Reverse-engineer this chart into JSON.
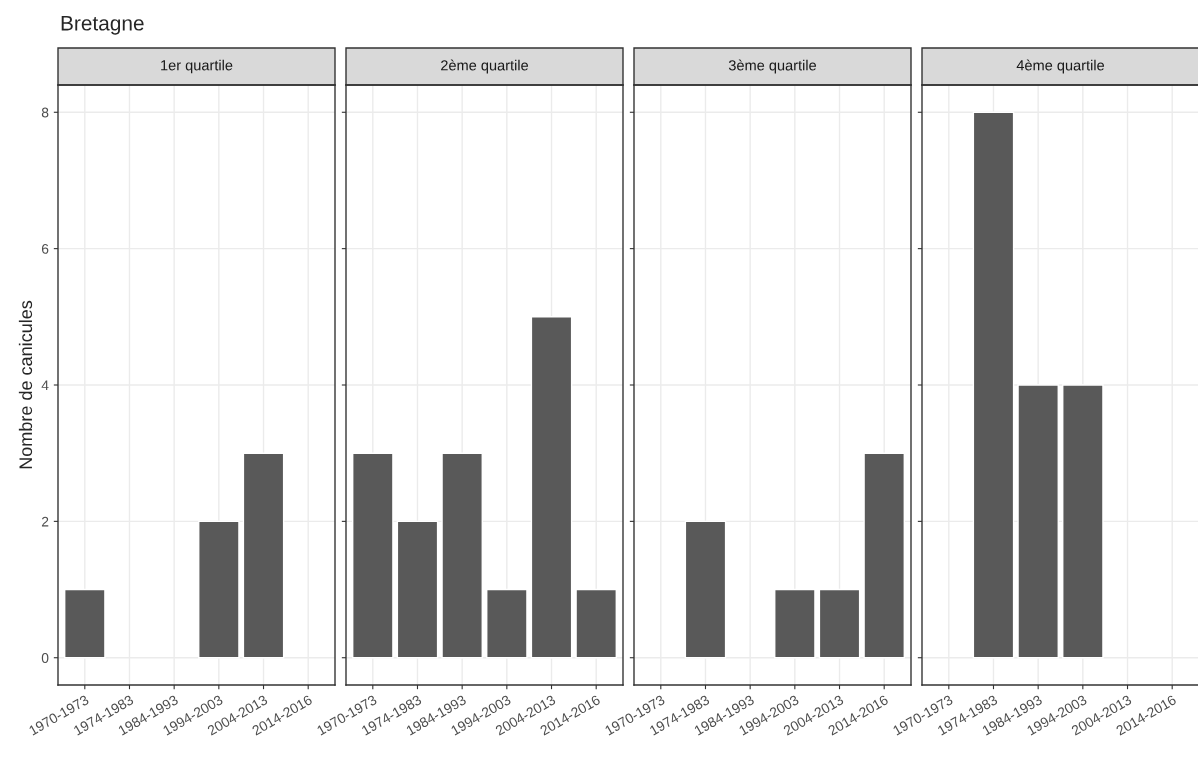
{
  "chart_data": [
    {
      "type": "bar",
      "title": "Bretagne",
      "subtitle": "1er quartile",
      "ylabel": "Nombre de canicules",
      "categories": [
        "1970-1973",
        "1974-1983",
        "1984-1993",
        "1994-2003",
        "2004-2013",
        "2014-2016"
      ],
      "values": [
        1,
        null,
        null,
        2,
        3,
        null
      ],
      "color": "#595959",
      "ylim": [
        -0.4,
        8.4
      ],
      "yticks": [
        0,
        2,
        4,
        6,
        8
      ],
      "grid": true
    },
    {
      "type": "bar",
      "subtitle": "2ème quartile",
      "categories": [
        "1970-1973",
        "1974-1983",
        "1984-1993",
        "1994-2003",
        "2004-2013",
        "2014-2016"
      ],
      "values": [
        3,
        2,
        3,
        1,
        5,
        1
      ],
      "color": "#595959",
      "ylim": [
        -0.4,
        8.4
      ],
      "yticks": [
        0,
        2,
        4,
        6,
        8
      ],
      "grid": true,
      "tick_labels": "x"
    },
    {
      "type": "bar",
      "subtitle": "3ème quartile",
      "categories": [
        "1970-1973",
        "1974-1983",
        "1984-1993",
        "1994-2003",
        "2004-2013",
        "2014-2016"
      ],
      "values": [
        null,
        2,
        null,
        1,
        1,
        3
      ],
      "color": "#595959",
      "ylim": [
        -0.4,
        8.4
      ],
      "yticks": [
        0,
        2,
        4,
        6,
        8
      ],
      "grid": true,
      "tick_labels": "x"
    },
    {
      "type": "bar",
      "subtitle": "4ème quartile",
      "categories": [
        "1970-1973",
        "1974-1983",
        "1984-1993",
        "1994-2003",
        "2004-2013",
        "2014-2016"
      ],
      "values": [
        null,
        8,
        4,
        4,
        null,
        null
      ],
      "color": "#595959",
      "ylim": [
        -0.4,
        8.4
      ],
      "yticks": [
        0,
        2,
        4,
        6,
        8
      ],
      "grid": true,
      "tick_labels": "x"
    }
  ]
}
